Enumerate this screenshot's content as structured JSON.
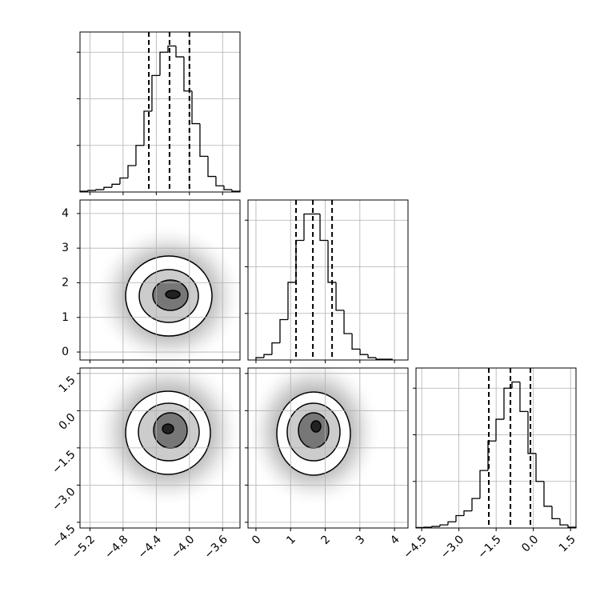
{
  "chart_data": {
    "type": "corner",
    "ylim": [
      0,
      1.03
    ],
    "yticks": [
      0.3,
      0.6,
      0.9
    ],
    "params": [
      {
        "lim": [
          -5.32,
          -3.39
        ],
        "ticks": [
          {
            "value": -5.2,
            "label": "−5.2"
          },
          {
            "value": -4.8,
            "label": "−4.8"
          },
          {
            "value": -4.4,
            "label": "−4.4"
          },
          {
            "value": -4.0,
            "label": "−4.0"
          },
          {
            "value": -3.6,
            "label": "−3.6"
          }
        ],
        "bins": [
          -5.32,
          -5.224,
          -5.127,
          -5.031,
          -4.934,
          -4.838,
          -4.741,
          -4.645,
          -4.548,
          -4.452,
          -4.355,
          -4.259,
          -4.162,
          -4.066,
          -3.969,
          -3.873,
          -3.776,
          -3.68,
          -3.583,
          -3.487,
          -3.39
        ],
        "values": [
          0.005,
          0.01,
          0.015,
          0.03,
          0.05,
          0.09,
          0.17,
          0.3,
          0.52,
          0.75,
          0.9,
          0.94,
          0.87,
          0.65,
          0.44,
          0.23,
          0.1,
          0.04,
          0.015,
          0.005
        ],
        "quantiles": [
          -4.49,
          -4.24,
          -4.0
        ]
      },
      {
        "lim": [
          -0.23,
          4.39
        ],
        "ticks": [
          0,
          1,
          2,
          3,
          4
        ],
        "bins": [
          0.0,
          0.231,
          0.462,
          0.694,
          0.925,
          1.156,
          1.387,
          1.618,
          1.85,
          2.081,
          2.312,
          2.543,
          2.775,
          3.006,
          3.237,
          3.468,
          3.699,
          3.931
        ],
        "values": [
          0.015,
          0.035,
          0.11,
          0.26,
          0.5,
          0.77,
          0.94,
          0.94,
          0.77,
          0.5,
          0.32,
          0.17,
          0.07,
          0.035,
          0.015,
          0.005,
          0.005
        ],
        "quantiles": [
          1.157,
          1.643,
          2.198
        ]
      },
      {
        "lim": [
          -4.73,
          1.72
        ],
        "ticks": [
          {
            "value": -4.5,
            "label": "−4.5"
          },
          {
            "value": -3.0,
            "label": "−3.0"
          },
          {
            "value": -1.5,
            "label": "−1.5"
          },
          {
            "value": 0,
            "label": "0.0"
          },
          1.5
        ],
        "bins": [
          -4.73,
          -4.408,
          -4.085,
          -3.763,
          -3.44,
          -3.118,
          -2.795,
          -2.473,
          -2.15,
          -1.828,
          -1.505,
          -1.183,
          -0.86,
          -0.538,
          -0.215,
          0.108,
          0.43,
          0.753,
          1.075,
          1.398,
          1.72
        ],
        "values": [
          0.003,
          0.005,
          0.01,
          0.02,
          0.04,
          0.08,
          0.11,
          0.19,
          0.37,
          0.56,
          0.7,
          0.9,
          0.94,
          0.75,
          0.48,
          0.3,
          0.14,
          0.06,
          0.02,
          0.005
        ],
        "quantiles": [
          -1.795,
          -0.923,
          -0.117
        ]
      }
    ]
  }
}
